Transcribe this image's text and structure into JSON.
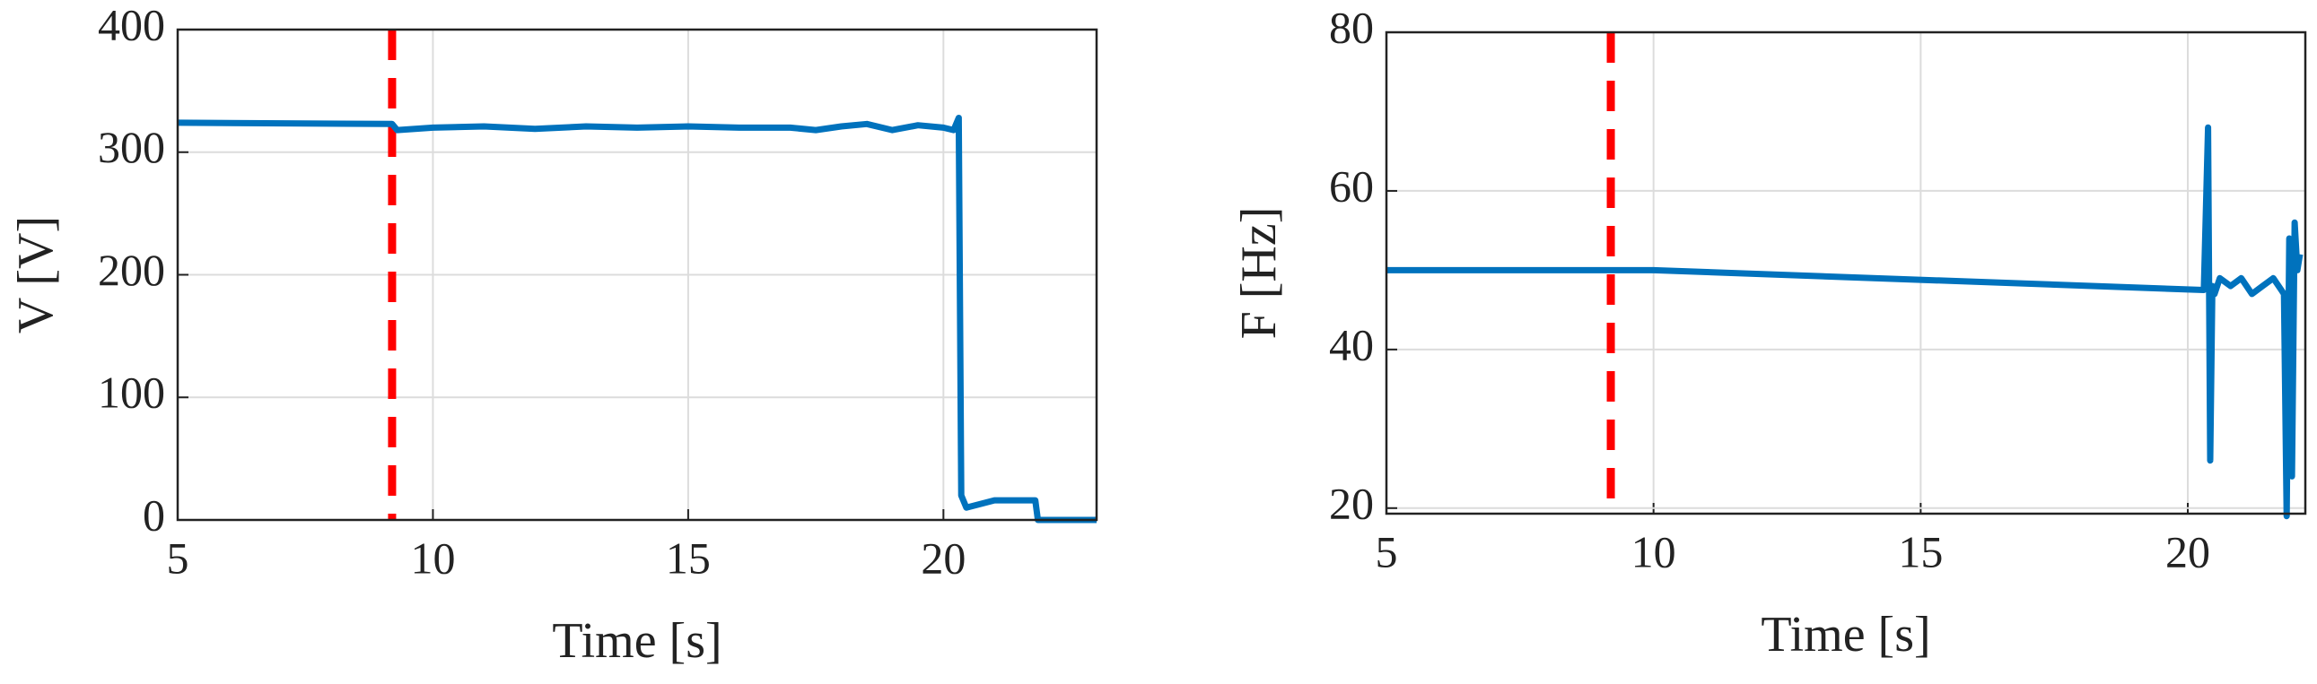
{
  "chart_data": [
    {
      "type": "line",
      "xlabel": "Time [s]",
      "ylabel": "V [V]",
      "x": [
        5,
        9.2,
        9.3,
        10,
        11,
        12,
        13,
        14,
        15,
        16,
        17,
        17.5,
        18,
        18.5,
        19,
        19.5,
        20,
        20.2,
        20.3,
        20.35,
        20.45,
        21,
        21.8,
        21.85,
        23
      ],
      "values": [
        324,
        323,
        318,
        320,
        321,
        319,
        321,
        320,
        321,
        320,
        320,
        318,
        321,
        323,
        318,
        322,
        320,
        318,
        328,
        20,
        10,
        16,
        16,
        0,
        0
      ],
      "color": "#0072bd",
      "xlim": [
        5,
        23
      ],
      "xticks": [
        5,
        10,
        15,
        20
      ],
      "ylim": [
        0,
        400
      ],
      "yticks": [
        0,
        100,
        200,
        300,
        400
      ],
      "grid": true,
      "vline": {
        "x": 9.2,
        "color": "#ff0000",
        "style": "dashed"
      }
    },
    {
      "type": "line",
      "xlabel": "Time [s]",
      "ylabel": "F [Hz]",
      "x": [
        5,
        9.2,
        10,
        20.3,
        20.38,
        20.42,
        20.46,
        20.5,
        20.6,
        20.8,
        21,
        21.2,
        21.4,
        21.6,
        21.8,
        21.85,
        21.9,
        21.95,
        22,
        22.05,
        22.1
      ],
      "values": [
        50,
        50,
        50,
        47.5,
        68,
        26,
        48,
        47,
        49,
        48,
        49,
        47,
        48,
        49,
        47,
        19,
        54,
        24,
        56,
        50,
        52
      ],
      "color": "#0072bd",
      "xlim": [
        5,
        22.2
      ],
      "xticks": [
        5,
        10,
        15,
        20
      ],
      "ylim": [
        19.3,
        80
      ],
      "yticks": [
        20,
        40,
        60,
        80
      ],
      "grid": true,
      "vline": {
        "x": 9.2,
        "color": "#ff0000",
        "style": "dashed"
      }
    }
  ]
}
